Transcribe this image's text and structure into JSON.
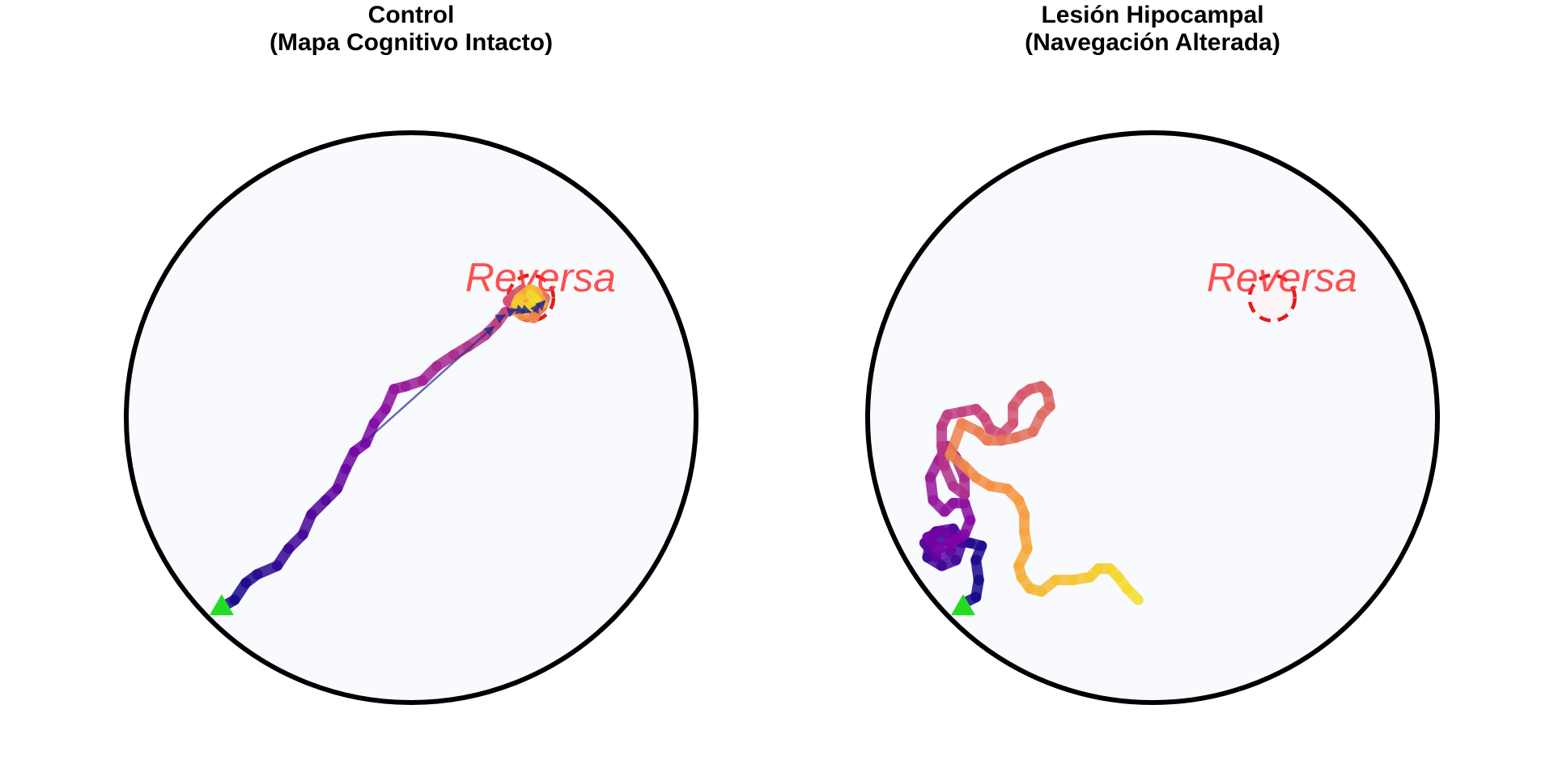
{
  "panels": [
    {
      "id": "control",
      "title_line1": "Control",
      "title_line2": "(Mapa Cognitivo Intacto)",
      "platform_label": "Reversa",
      "colors": {
        "arena_fill": "#f8fafd",
        "arena_stroke": "#000000",
        "platform": "#e41a1c",
        "start": "#22dd22",
        "arrow": "#2b2b8c"
      },
      "start": [
        -0.665,
        -0.665
      ],
      "platform": [
        0.42,
        0.42
      ],
      "path": [
        [
          -0.655,
          -0.66
        ],
        [
          -0.62,
          -0.64
        ],
        [
          -0.58,
          -0.58
        ],
        [
          -0.54,
          -0.55
        ],
        [
          -0.47,
          -0.52
        ],
        [
          -0.43,
          -0.46
        ],
        [
          -0.38,
          -0.41
        ],
        [
          -0.35,
          -0.34
        ],
        [
          -0.3,
          -0.29
        ],
        [
          -0.26,
          -0.25
        ],
        [
          -0.23,
          -0.18
        ],
        [
          -0.2,
          -0.12
        ],
        [
          -0.16,
          -0.09
        ],
        [
          -0.13,
          -0.02
        ],
        [
          -0.09,
          0.03
        ],
        [
          -0.06,
          0.1
        ],
        [
          -0.02,
          0.11
        ],
        [
          0.04,
          0.13
        ],
        [
          0.09,
          0.18
        ],
        [
          0.15,
          0.22
        ],
        [
          0.2,
          0.25
        ],
        [
          0.26,
          0.29
        ],
        [
          0.3,
          0.33
        ],
        [
          0.33,
          0.37
        ],
        [
          0.36,
          0.38
        ],
        [
          0.34,
          0.41
        ],
        [
          0.36,
          0.43
        ],
        [
          0.39,
          0.45
        ],
        [
          0.4,
          0.42
        ],
        [
          0.44,
          0.44
        ],
        [
          0.47,
          0.42
        ],
        [
          0.46,
          0.39
        ],
        [
          0.44,
          0.37
        ],
        [
          0.43,
          0.35
        ],
        [
          0.39,
          0.36
        ],
        [
          0.36,
          0.38
        ],
        [
          0.4,
          0.41
        ],
        [
          0.43,
          0.39
        ],
        [
          0.46,
          0.4
        ],
        [
          0.44,
          0.44
        ],
        [
          0.42,
          0.45
        ],
        [
          0.38,
          0.42
        ],
        [
          0.37,
          0.4
        ],
        [
          0.4,
          0.38
        ],
        [
          0.44,
          0.41
        ],
        [
          0.42,
          0.43
        ]
      ],
      "arrows": [
        [
          [
            -0.18,
            -0.1
          ],
          [
            0.29,
            0.32
          ]
        ],
        [
          [
            0.31,
            0.35
          ],
          [
            0.33,
            0.36
          ]
        ],
        [
          [
            0.34,
            0.37
          ],
          [
            0.37,
            0.38
          ]
        ],
        [
          [
            0.37,
            0.38
          ],
          [
            0.4,
            0.37
          ]
        ],
        [
          [
            0.39,
            0.38
          ],
          [
            0.42,
            0.37
          ]
        ],
        [
          [
            0.43,
            0.37
          ],
          [
            0.45,
            0.4
          ]
        ],
        [
          [
            0.45,
            0.39
          ],
          [
            0.47,
            0.41
          ]
        ]
      ]
    },
    {
      "id": "lesion",
      "title_line1": "Lesión Hipocampal",
      "title_line2": "(Navegación Alterada)",
      "platform_label": "Reversa",
      "colors": {
        "arena_fill": "#f8fafd",
        "arena_stroke": "#000000",
        "platform": "#e41a1c",
        "start": "#22dd22",
        "arrow": "#2b2b8c"
      },
      "start": [
        -0.665,
        -0.665
      ],
      "platform": [
        0.42,
        0.42
      ],
      "path": [
        [
          -0.66,
          -0.65
        ],
        [
          -0.62,
          -0.63
        ],
        [
          -0.61,
          -0.57
        ],
        [
          -0.62,
          -0.5
        ],
        [
          -0.6,
          -0.45
        ],
        [
          -0.64,
          -0.44
        ],
        [
          -0.7,
          -0.43
        ],
        [
          -0.78,
          -0.44
        ],
        [
          -0.79,
          -0.49
        ],
        [
          -0.74,
          -0.52
        ],
        [
          -0.69,
          -0.5
        ],
        [
          -0.67,
          -0.44
        ],
        [
          -0.7,
          -0.39
        ],
        [
          -0.76,
          -0.4
        ],
        [
          -0.8,
          -0.44
        ],
        [
          -0.76,
          -0.49
        ],
        [
          -0.71,
          -0.47
        ],
        [
          -0.7,
          -0.42
        ],
        [
          -0.74,
          -0.4
        ],
        [
          -0.79,
          -0.42
        ],
        [
          -0.75,
          -0.46
        ],
        [
          -0.71,
          -0.44
        ],
        [
          -0.66,
          -0.41
        ],
        [
          -0.64,
          -0.36
        ],
        [
          -0.66,
          -0.3
        ],
        [
          -0.7,
          -0.3
        ],
        [
          -0.73,
          -0.33
        ],
        [
          -0.77,
          -0.29
        ],
        [
          -0.78,
          -0.21
        ],
        [
          -0.75,
          -0.15
        ],
        [
          -0.72,
          -0.1
        ],
        [
          -0.69,
          -0.14
        ],
        [
          -0.66,
          -0.21
        ],
        [
          -0.66,
          -0.27
        ],
        [
          -0.7,
          -0.24
        ],
        [
          -0.73,
          -0.17
        ],
        [
          -0.74,
          -0.1
        ],
        [
          -0.74,
          -0.03
        ],
        [
          -0.72,
          0.01
        ],
        [
          -0.67,
          0.02
        ],
        [
          -0.62,
          0.03
        ],
        [
          -0.59,
          0.0
        ],
        [
          -0.57,
          -0.04
        ],
        [
          -0.53,
          -0.06
        ],
        [
          -0.49,
          -0.02
        ],
        [
          -0.49,
          0.04
        ],
        [
          -0.46,
          0.08
        ],
        [
          -0.43,
          0.1
        ],
        [
          -0.39,
          0.11
        ],
        [
          -0.37,
          0.09
        ],
        [
          -0.36,
          0.04
        ],
        [
          -0.39,
          0.01
        ],
        [
          -0.42,
          -0.05
        ],
        [
          -0.48,
          -0.07
        ],
        [
          -0.53,
          -0.08
        ],
        [
          -0.58,
          -0.08
        ],
        [
          -0.61,
          -0.05
        ],
        [
          -0.67,
          -0.02
        ],
        [
          -0.71,
          -0.13
        ],
        [
          -0.66,
          -0.17
        ],
        [
          -0.62,
          -0.21
        ],
        [
          -0.57,
          -0.24
        ],
        [
          -0.51,
          -0.25
        ],
        [
          -0.47,
          -0.29
        ],
        [
          -0.45,
          -0.34
        ],
        [
          -0.45,
          -0.4
        ],
        [
          -0.44,
          -0.46
        ],
        [
          -0.47,
          -0.52
        ],
        [
          -0.46,
          -0.56
        ],
        [
          -0.43,
          -0.6
        ],
        [
          -0.39,
          -0.61
        ],
        [
          -0.34,
          -0.57
        ],
        [
          -0.28,
          -0.57
        ],
        [
          -0.22,
          -0.56
        ],
        [
          -0.19,
          -0.53
        ],
        [
          -0.15,
          -0.53
        ],
        [
          -0.12,
          -0.56
        ],
        [
          -0.09,
          -0.6
        ],
        [
          -0.05,
          -0.64
        ]
      ],
      "arrows": []
    }
  ]
}
